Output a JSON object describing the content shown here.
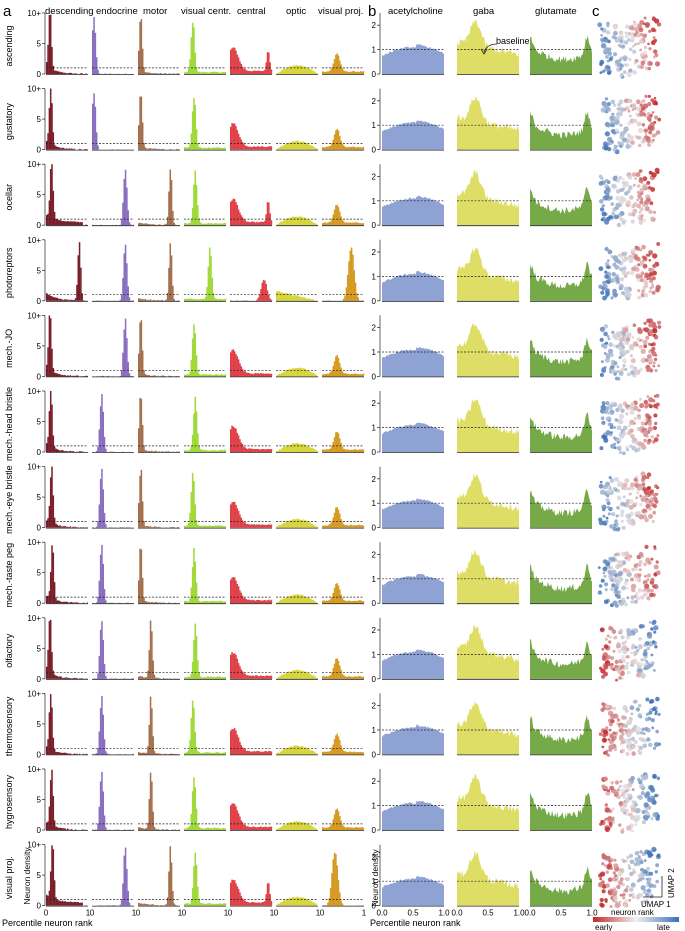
{
  "panel_letters": [
    "a",
    "b",
    "c"
  ],
  "chart_data": {
    "type": "area",
    "panel_a": {
      "columns": [
        "descending",
        "endocrine",
        "motor",
        "visual centr.",
        "central",
        "optic",
        "visual proj."
      ],
      "colors": [
        "#7a1f2a",
        "#8a6ec0",
        "#a5704d",
        "#9fd93a",
        "#e04048",
        "#d6d63c",
        "#d69a22"
      ],
      "rows": [
        "ascending",
        "gustatory",
        "ocellar",
        "photoreptors",
        "mech.-JO",
        "mech.-head bristle",
        "mech.-eye bristle",
        "mech.-taste peg",
        "olfactory",
        "thermosensory",
        "hygrosensory",
        "visual proj."
      ],
      "yticks": [
        "0",
        "5",
        "10+"
      ],
      "ylim": [
        0,
        10
      ],
      "xticks": [
        "0",
        "1"
      ],
      "baseline": 1,
      "xlabel": "Percentile neuron rank",
      "ylabel": "Neuron density"
    },
    "panel_b": {
      "columns": [
        "acetylcholine",
        "gaba",
        "glutamate"
      ],
      "colors": [
        "#8fa2d4",
        "#dede66",
        "#76a948"
      ],
      "yticks": [
        "0",
        "1",
        "2"
      ],
      "ylim": [
        0,
        2.5
      ],
      "xticks": [
        "0.0",
        "0.5",
        "1.0"
      ],
      "baseline": 1,
      "baseline_label": "baseline",
      "xlabel": "Percentile neuron rank",
      "ylabel": "Neuron density"
    },
    "panel_c": {
      "axis_x": "UMAP 1",
      "axis_y": "UMAP 2",
      "colorbar_title": "neuron rank",
      "colorbar_low": "early",
      "colorbar_high": "late"
    }
  }
}
